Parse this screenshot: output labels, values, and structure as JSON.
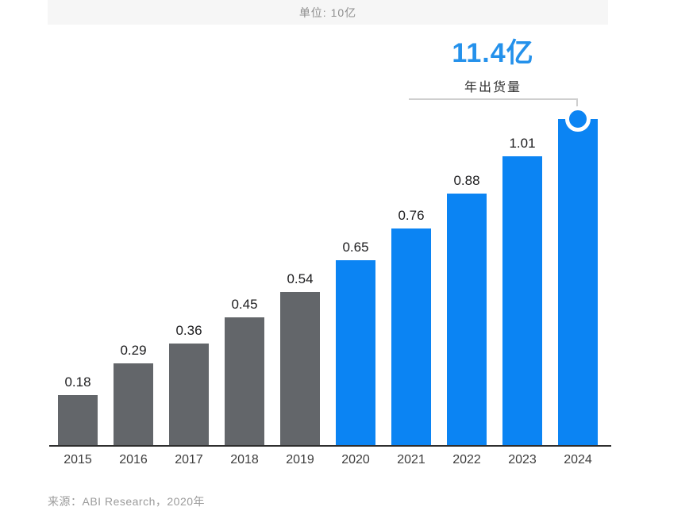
{
  "header": {
    "unit_label": "单位: 10亿"
  },
  "annotation": {
    "value": "11.4亿",
    "label": "年出货量"
  },
  "source": "来源：ABI Research，2020年",
  "colors": {
    "gray_bar": "#63666a",
    "blue_bar": "#0b84f3",
    "annotation_blue": "#2491eb",
    "axis": "#2e2e2e",
    "connector": "#cfcfcf",
    "strip_bg": "#f6f6f6"
  },
  "chart_data": {
    "type": "bar",
    "title": "",
    "xlabel": "",
    "ylabel": "",
    "unit": "10亿",
    "ylim": [
      0,
      1.2
    ],
    "grid": false,
    "legend": "none",
    "categories": [
      "2015",
      "2016",
      "2017",
      "2018",
      "2019",
      "2020",
      "2021",
      "2022",
      "2023",
      "2024"
    ],
    "values": [
      0.18,
      0.29,
      0.36,
      0.45,
      0.54,
      0.65,
      0.76,
      0.88,
      1.01,
      1.14
    ],
    "bar_value_labels": [
      "0.18",
      "0.29",
      "0.36",
      "0.45",
      "0.54",
      "0.65",
      "0.76",
      "0.88",
      "1.01",
      ""
    ],
    "bar_color_keys": [
      "gray_bar",
      "gray_bar",
      "gray_bar",
      "gray_bar",
      "gray_bar",
      "blue_bar",
      "blue_bar",
      "blue_bar",
      "blue_bar",
      "blue_bar"
    ],
    "highlight": {
      "category": "2024",
      "value_label": "11.4亿",
      "sub_label": "年出货量",
      "marker": "circle-on-bar-top"
    }
  }
}
